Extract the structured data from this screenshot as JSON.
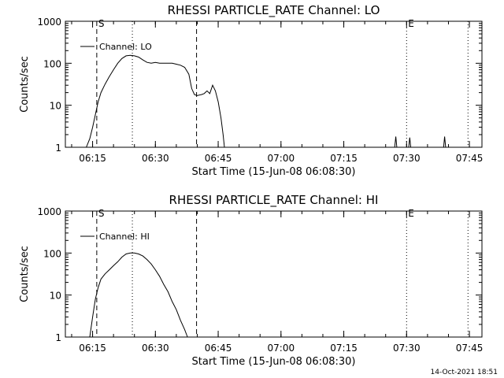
{
  "chart_data": [
    {
      "type": "line",
      "title": "RHESSI PARTICLE_RATE Channel: LO",
      "xlabel": "Start Time (15-Jun-08 06:08:30)",
      "ylabel": "Counts/sec",
      "yscale": "log",
      "ylim": [
        1,
        1000
      ],
      "xlim": [
        "06:08:30",
        "07:48:00"
      ],
      "grid": false,
      "legend": {
        "placement": "top-left",
        "entries": [
          "Channel: LO"
        ]
      },
      "x_ticks": [
        "06:15",
        "06:30",
        "06:45",
        "07:00",
        "07:15",
        "07:30",
        "07:45"
      ],
      "y_ticks": [
        "1",
        "10",
        "100",
        "1000"
      ],
      "markers": [
        {
          "label": "S",
          "time": "06:16:00",
          "style": "dashed"
        },
        {
          "label": "",
          "time": "06:24:30",
          "style": "dotted"
        },
        {
          "label": "",
          "time": "06:39:50",
          "style": "dashed"
        },
        {
          "label": "E",
          "time": "07:30:00",
          "style": "dotted"
        },
        {
          "label": "",
          "time": "07:44:40",
          "style": "dotted"
        }
      ],
      "series": [
        {
          "name": "Channel: LO",
          "x": [
            "06:13:30",
            "06:14:20",
            "06:15:00",
            "06:15:40",
            "06:16:20",
            "06:17:00",
            "06:18:00",
            "06:19:00",
            "06:20:00",
            "06:21:00",
            "06:22:00",
            "06:23:00",
            "06:24:00",
            "06:25:00",
            "06:26:00",
            "06:27:00",
            "06:28:00",
            "06:29:00",
            "06:30:00",
            "06:31:00",
            "06:32:00",
            "06:33:00",
            "06:34:00",
            "06:35:00",
            "06:36:00",
            "06:37:00",
            "06:38:00",
            "06:38:40",
            "06:39:20",
            "06:40:00",
            "06:41:00",
            "06:41:40",
            "06:42:20",
            "06:43:00",
            "06:43:40",
            "06:44:20",
            "06:45:00",
            "06:45:40",
            "06:46:10",
            "06:46:30",
            "07:27:10",
            "07:27:25",
            "07:27:40",
            "07:30:30",
            "07:30:45",
            "07:31:00",
            "07:38:50",
            "07:39:05",
            "07:39:20"
          ],
          "values": [
            1,
            1.6,
            3,
            6,
            12,
            20,
            32,
            48,
            70,
            100,
            130,
            150,
            155,
            150,
            140,
            120,
            105,
            100,
            105,
            100,
            100,
            100,
            100,
            95,
            90,
            80,
            55,
            25,
            18,
            17,
            18,
            19,
            22,
            19,
            30,
            22,
            12,
            5,
            2,
            1,
            1,
            1.8,
            1,
            1,
            1.7,
            1,
            1,
            1.8,
            1
          ]
        }
      ]
    },
    {
      "type": "line",
      "title": "RHESSI PARTICLE_RATE Channel: HI",
      "xlabel": "Start Time (15-Jun-08 06:08:30)",
      "ylabel": "Counts/sec",
      "yscale": "log",
      "ylim": [
        1,
        1000
      ],
      "xlim": [
        "06:08:30",
        "07:48:00"
      ],
      "grid": false,
      "legend": {
        "placement": "top-left",
        "entries": [
          "Channel: HI"
        ]
      },
      "x_ticks": [
        "06:15",
        "06:30",
        "06:45",
        "07:00",
        "07:15",
        "07:30",
        "07:45"
      ],
      "y_ticks": [
        "1",
        "10",
        "100",
        "1000"
      ],
      "markers": [
        {
          "label": "S",
          "time": "06:16:00",
          "style": "dashed"
        },
        {
          "label": "",
          "time": "06:24:30",
          "style": "dotted"
        },
        {
          "label": "",
          "time": "06:39:50",
          "style": "dashed"
        },
        {
          "label": "E",
          "time": "07:30:00",
          "style": "dotted"
        },
        {
          "label": "",
          "time": "07:44:40",
          "style": "dotted"
        }
      ],
      "series": [
        {
          "name": "Channel: HI",
          "x": [
            "06:14:20",
            "06:15:00",
            "06:15:40",
            "06:16:20",
            "06:17:00",
            "06:18:00",
            "06:19:00",
            "06:20:00",
            "06:21:00",
            "06:22:00",
            "06:23:00",
            "06:24:00",
            "06:25:00",
            "06:26:00",
            "06:27:00",
            "06:28:00",
            "06:29:00",
            "06:30:00",
            "06:31:00",
            "06:32:00",
            "06:33:00",
            "06:34:00",
            "06:35:00",
            "06:36:00",
            "06:37:00",
            "06:37:40"
          ],
          "values": [
            1,
            3,
            8,
            15,
            24,
            32,
            40,
            50,
            62,
            80,
            95,
            100,
            100,
            95,
            85,
            70,
            55,
            40,
            28,
            18,
            12,
            7,
            4.5,
            2.5,
            1.5,
            1
          ]
        }
      ]
    }
  ],
  "footer": {
    "timestamp": "14-Oct-2021 18:51"
  }
}
